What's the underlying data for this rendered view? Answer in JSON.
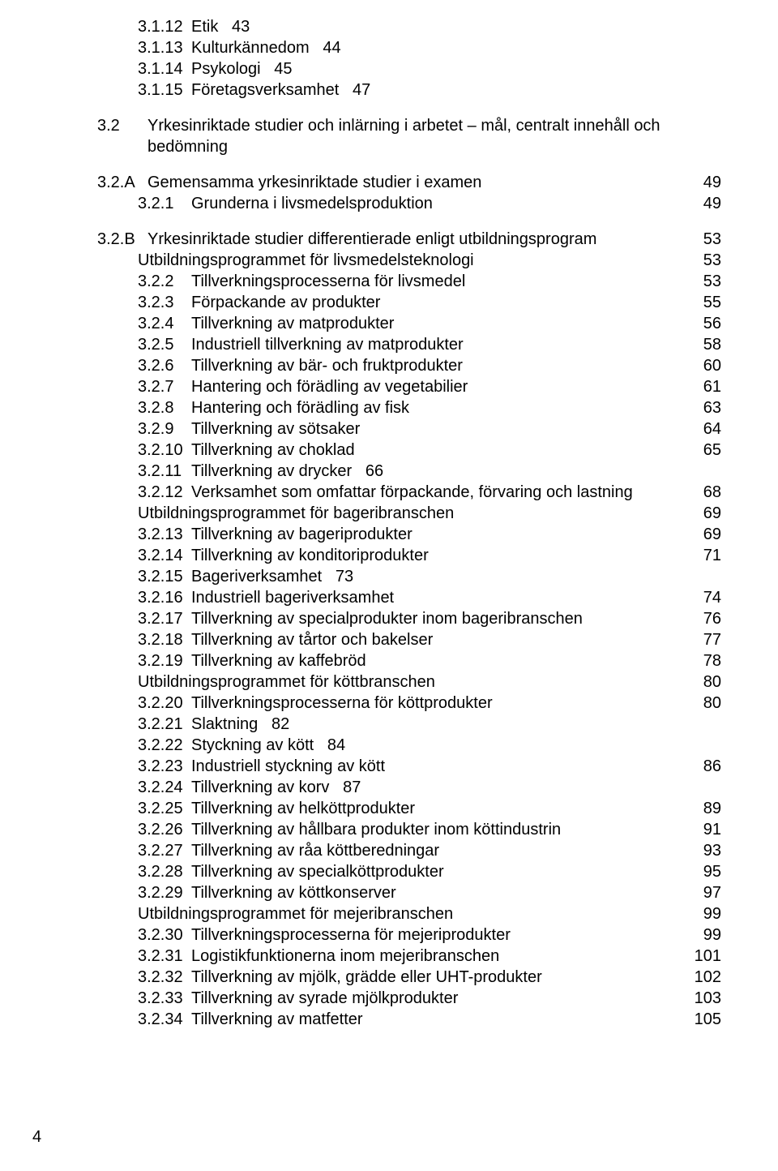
{
  "toc": [
    {
      "indent": 2,
      "num": "3.1.12",
      "label": "Etik",
      "page": "43",
      "inline": true,
      "gapAfter": false
    },
    {
      "indent": 2,
      "num": "3.1.13",
      "label": "Kulturkännedom",
      "page": "44",
      "inline": true,
      "gapAfter": false
    },
    {
      "indent": 2,
      "num": "3.1.14",
      "label": "Psykologi",
      "page": "45",
      "inline": true,
      "gapAfter": false
    },
    {
      "indent": 2,
      "num": "3.1.15",
      "label": "Företagsverksamhet",
      "page": "47",
      "inline": true,
      "gapAfter": true
    },
    {
      "indent": 0,
      "num": "3.2",
      "label": "Yrkesinriktade studier och inlärning i arbetet – mål, centralt innehåll och bedömning",
      "page": "",
      "inline": false,
      "gapAfter": true
    },
    {
      "indent": 0,
      "num": "3.2.A",
      "label": "Gemensamma yrkesinriktade studier i examen",
      "page": "49",
      "inline": false,
      "gapAfter": false
    },
    {
      "indent": 2,
      "num": "3.2.1",
      "label": "Grunderna i livsmedelsproduktion",
      "page": "49",
      "inline": false,
      "gapAfter": true
    },
    {
      "indent": 0,
      "num": "3.2.B",
      "label": "Yrkesinriktade studier differentierade enligt utbildningsprogram",
      "page": "53",
      "inline": false,
      "gapAfter": false
    },
    {
      "indent": 2,
      "num": "",
      "label": "Utbildningsprogrammet för livsmedelsteknologi",
      "page": "53",
      "inline": false,
      "gapAfter": false
    },
    {
      "indent": 2,
      "num": "3.2.2",
      "label": "Tillverkningsprocesserna för livsmedel",
      "page": "53",
      "inline": false,
      "gapAfter": false
    },
    {
      "indent": 2,
      "num": "3.2.3",
      "label": "Förpackande av produkter",
      "page": "55",
      "inline": false,
      "gapAfter": false
    },
    {
      "indent": 2,
      "num": "3.2.4",
      "label": "Tillverkning av matprodukter",
      "page": "56",
      "inline": false,
      "gapAfter": false
    },
    {
      "indent": 2,
      "num": "3.2.5",
      "label": "Industriell tillverkning av matprodukter",
      "page": "58",
      "inline": false,
      "gapAfter": false
    },
    {
      "indent": 2,
      "num": "3.2.6",
      "label": "Tillverkning av bär- och fruktprodukter",
      "page": "60",
      "inline": false,
      "gapAfter": false
    },
    {
      "indent": 2,
      "num": "3.2.7",
      "label": "Hantering och förädling av vegetabilier",
      "page": "61",
      "inline": false,
      "gapAfter": false
    },
    {
      "indent": 2,
      "num": "3.2.8",
      "label": "Hantering och förädling av fisk",
      "page": "63",
      "inline": false,
      "gapAfter": false
    },
    {
      "indent": 2,
      "num": "3.2.9",
      "label": "Tillverkning av sötsaker",
      "page": "64",
      "inline": false,
      "gapAfter": false
    },
    {
      "indent": 2,
      "num": "3.2.10",
      "label": "Tillverkning av choklad",
      "page": "65",
      "inline": false,
      "gapAfter": false
    },
    {
      "indent": 2,
      "num": "3.2.11",
      "label": "Tillverkning av drycker",
      "page": "66",
      "inline": true,
      "gapAfter": false
    },
    {
      "indent": 2,
      "num": "3.2.12",
      "label": "Verksamhet som omfattar förpackande, förvaring och lastning",
      "page": "68",
      "inline": false,
      "gapAfter": false
    },
    {
      "indent": 2,
      "num": "",
      "label": "Utbildningsprogrammet för bageribranschen",
      "page": "69",
      "inline": false,
      "gapAfter": false
    },
    {
      "indent": 2,
      "num": "3.2.13",
      "label": "Tillverkning av bageriprodukter",
      "page": "69",
      "inline": false,
      "gapAfter": false
    },
    {
      "indent": 2,
      "num": "3.2.14",
      "label": "Tillverkning av konditoriprodukter",
      "page": "71",
      "inline": false,
      "gapAfter": false
    },
    {
      "indent": 2,
      "num": "3.2.15",
      "label": "Bageriverksamhet",
      "page": "73",
      "inline": true,
      "gapAfter": false
    },
    {
      "indent": 2,
      "num": "3.2.16",
      "label": "Industriell bageriverksamhet",
      "page": "74",
      "inline": false,
      "gapAfter": false
    },
    {
      "indent": 2,
      "num": "3.2.17",
      "label": "Tillverkning av specialprodukter inom bageribranschen",
      "page": "76",
      "inline": false,
      "gapAfter": false
    },
    {
      "indent": 2,
      "num": "3.2.18",
      "label": "Tillverkning av tårtor och bakelser",
      "page": "77",
      "inline": false,
      "gapAfter": false
    },
    {
      "indent": 2,
      "num": "3.2.19",
      "label": "Tillverkning av kaffebröd",
      "page": "78",
      "inline": false,
      "gapAfter": false
    },
    {
      "indent": 2,
      "num": "",
      "label": "Utbildningsprogrammet för köttbranschen",
      "page": "80",
      "inline": false,
      "gapAfter": false
    },
    {
      "indent": 2,
      "num": "3.2.20",
      "label": "Tillverkningsprocesserna för köttprodukter",
      "page": "80",
      "inline": false,
      "gapAfter": false
    },
    {
      "indent": 2,
      "num": "3.2.21",
      "label": "Slaktning",
      "page": "82",
      "inline": true,
      "gapAfter": false
    },
    {
      "indent": 2,
      "num": "3.2.22",
      "label": "Styckning av kött",
      "page": "84",
      "inline": true,
      "gapAfter": false
    },
    {
      "indent": 2,
      "num": "3.2.23",
      "label": "Industriell styckning av kött",
      "page": "86",
      "inline": false,
      "gapAfter": false
    },
    {
      "indent": 2,
      "num": "3.2.24",
      "label": "Tillverkning av korv",
      "page": "87",
      "inline": true,
      "gapAfter": false
    },
    {
      "indent": 2,
      "num": "3.2.25",
      "label": "Tillverkning av helköttprodukter",
      "page": "89",
      "inline": false,
      "gapAfter": false
    },
    {
      "indent": 2,
      "num": "3.2.26",
      "label": "Tillverkning av hållbara produkter inom köttindustrin",
      "page": "91",
      "inline": false,
      "gapAfter": false
    },
    {
      "indent": 2,
      "num": "3.2.27",
      "label": "Tillverkning av råa köttberedningar",
      "page": "93",
      "inline": false,
      "gapAfter": false
    },
    {
      "indent": 2,
      "num": "3.2.28",
      "label": "Tillverkning av specialköttprodukter",
      "page": "95",
      "inline": false,
      "gapAfter": false
    },
    {
      "indent": 2,
      "num": "3.2.29",
      "label": "Tillverkning av köttkonserver",
      "page": "97",
      "inline": false,
      "gapAfter": false
    },
    {
      "indent": 2,
      "num": "",
      "label": "Utbildningsprogrammet för mejeribranschen",
      "page": "99",
      "inline": false,
      "gapAfter": false
    },
    {
      "indent": 2,
      "num": "3.2.30",
      "label": "Tillverkningsprocesserna för mejeriprodukter",
      "page": "99",
      "inline": false,
      "gapAfter": false
    },
    {
      "indent": 2,
      "num": "3.2.31",
      "label": "Logistikfunktionerna inom mejeribranschen",
      "page": "101",
      "inline": false,
      "gapAfter": false
    },
    {
      "indent": 2,
      "num": "3.2.32",
      "label": "Tillverkning av mjölk, grädde eller UHT-produkter",
      "page": "102",
      "inline": false,
      "gapAfter": false
    },
    {
      "indent": 2,
      "num": "3.2.33",
      "label": "Tillverkning av syrade mjölkprodukter",
      "page": "103",
      "inline": false,
      "gapAfter": false
    },
    {
      "indent": 2,
      "num": "3.2.34",
      "label": "Tillverkning av matfetter",
      "page": "105",
      "inline": false,
      "gapAfter": false
    }
  ],
  "footerPage": "4"
}
